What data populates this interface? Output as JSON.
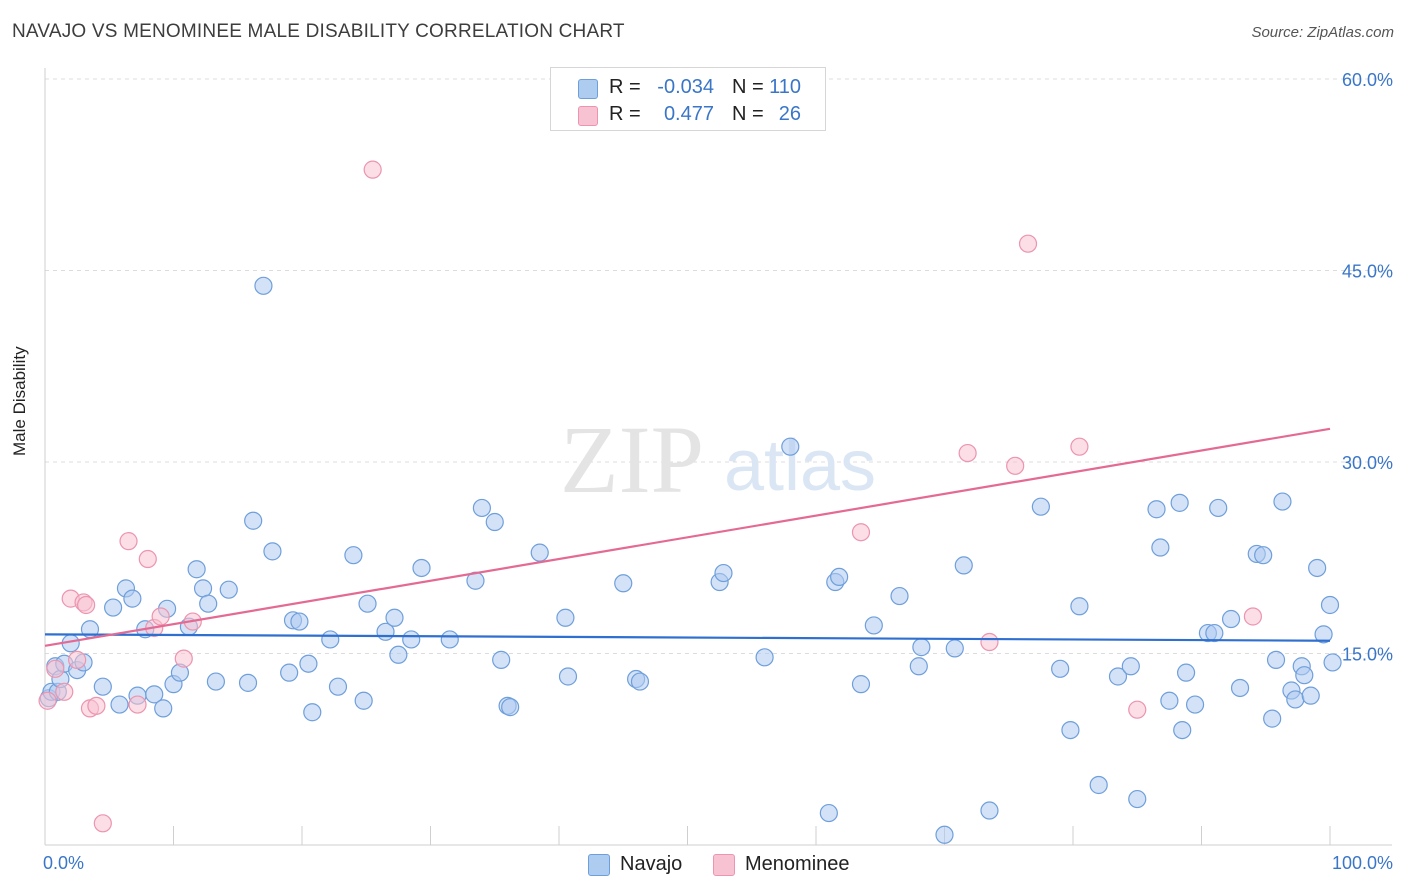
{
  "title": "NAVAJO VS MENOMINEE MALE DISABILITY CORRELATION CHART",
  "source": "Source: ZipAtlas.com",
  "watermark": {
    "zip": "ZIP",
    "atlas": "atlas"
  },
  "legend": {
    "rows": [
      {
        "r_label": "R =",
        "r_value": "-0.034",
        "n_label": "N =",
        "n_value": "110"
      },
      {
        "r_label": "R =",
        "r_value": "0.477",
        "n_label": "N =",
        "n_value": "26"
      }
    ]
  },
  "colors": {
    "navajo_fill": "#aecbf0",
    "navajo_stroke": "#6f9fdb",
    "navajo_line": "#2f6fd0",
    "menominee_fill": "#f7c3d2",
    "menominee_stroke": "#ec94b0",
    "menominee_line": "#e46a93",
    "tick_label": "#3a76c8",
    "grid": "#dcdcdc"
  },
  "chart_data": {
    "type": "scatter",
    "title": "NAVAJO VS MENOMINEE MALE DISABILITY CORRELATION CHART",
    "ylabel": "Male Disability",
    "xlabel": "",
    "xlim": [
      0,
      100
    ],
    "ylim": [
      0,
      60
    ],
    "x_tick_labels": [
      "0.0%",
      "100.0%"
    ],
    "y_ticks": [
      15,
      30,
      45,
      60
    ],
    "y_tick_labels": [
      "15.0%",
      "30.0%",
      "45.0%",
      "60.0%"
    ],
    "grid": "horizontal dashed",
    "legend_position": "top-center",
    "series": [
      {
        "name": "Navajo",
        "r": -0.034,
        "n": 110,
        "trend": {
          "x": [
            0,
            100
          ],
          "y": [
            16.5,
            16.0
          ]
        },
        "points": [
          [
            0.3,
            11.5
          ],
          [
            0.5,
            12
          ],
          [
            0.8,
            14
          ],
          [
            1.0,
            12
          ],
          [
            1.2,
            13
          ],
          [
            1.5,
            14.2
          ],
          [
            2.0,
            15.8
          ],
          [
            2.5,
            13.7
          ],
          [
            3.0,
            14.3
          ],
          [
            3.5,
            16.9
          ],
          [
            4.5,
            12.4
          ],
          [
            5.3,
            18.6
          ],
          [
            5.8,
            11.0
          ],
          [
            6.3,
            20.1
          ],
          [
            6.8,
            19.3
          ],
          [
            7.2,
            11.7
          ],
          [
            7.8,
            16.9
          ],
          [
            8.5,
            11.8
          ],
          [
            9.2,
            10.7
          ],
          [
            9.5,
            18.5
          ],
          [
            10.0,
            12.6
          ],
          [
            10.5,
            13.5
          ],
          [
            11.2,
            17.1
          ],
          [
            11.8,
            21.6
          ],
          [
            12.3,
            20.1
          ],
          [
            12.7,
            18.9
          ],
          [
            13.3,
            12.8
          ],
          [
            14.3,
            20.0
          ],
          [
            15.8,
            12.7
          ],
          [
            16.2,
            25.4
          ],
          [
            17.0,
            43.8
          ],
          [
            17.7,
            23.0
          ],
          [
            19.0,
            13.5
          ],
          [
            19.3,
            17.6
          ],
          [
            19.8,
            17.5
          ],
          [
            20.5,
            14.2
          ],
          [
            20.8,
            10.4
          ],
          [
            22.2,
            16.1
          ],
          [
            22.8,
            12.4
          ],
          [
            24.0,
            22.7
          ],
          [
            24.8,
            11.3
          ],
          [
            25.1,
            18.9
          ],
          [
            26.5,
            16.7
          ],
          [
            27.2,
            17.8
          ],
          [
            27.5,
            14.9
          ],
          [
            28.5,
            16.1
          ],
          [
            29.3,
            21.7
          ],
          [
            31.5,
            16.1
          ],
          [
            33.5,
            20.7
          ],
          [
            34.0,
            26.4
          ],
          [
            35.0,
            25.3
          ],
          [
            35.5,
            14.5
          ],
          [
            36.0,
            10.9
          ],
          [
            36.2,
            10.8
          ],
          [
            38.5,
            22.9
          ],
          [
            40.5,
            17.8
          ],
          [
            40.7,
            13.2
          ],
          [
            45.0,
            20.5
          ],
          [
            46.0,
            13.0
          ],
          [
            46.3,
            12.8
          ],
          [
            52.5,
            20.6
          ],
          [
            52.8,
            21.3
          ],
          [
            56.0,
            14.7
          ],
          [
            58.0,
            31.2
          ],
          [
            61.0,
            2.5
          ],
          [
            61.5,
            20.6
          ],
          [
            61.8,
            21.0
          ],
          [
            63.5,
            12.6
          ],
          [
            64.5,
            17.2
          ],
          [
            66.5,
            19.5
          ],
          [
            68.0,
            14.0
          ],
          [
            68.2,
            15.5
          ],
          [
            70.0,
            0.8
          ],
          [
            70.8,
            15.4
          ],
          [
            71.5,
            21.9
          ],
          [
            73.5,
            2.7
          ],
          [
            77.5,
            26.5
          ],
          [
            79.0,
            13.8
          ],
          [
            79.8,
            9.0
          ],
          [
            80.5,
            18.7
          ],
          [
            82.0,
            4.7
          ],
          [
            83.5,
            13.2
          ],
          [
            84.5,
            14.0
          ],
          [
            85.0,
            3.6
          ],
          [
            86.5,
            26.3
          ],
          [
            86.8,
            23.3
          ],
          [
            87.5,
            11.3
          ],
          [
            88.3,
            26.8
          ],
          [
            88.5,
            9.0
          ],
          [
            88.8,
            13.5
          ],
          [
            89.5,
            11.0
          ],
          [
            90.5,
            16.6
          ],
          [
            91.0,
            16.6
          ],
          [
            91.3,
            26.4
          ],
          [
            92.3,
            17.7
          ],
          [
            93.0,
            12.3
          ],
          [
            94.3,
            22.8
          ],
          [
            94.8,
            22.7
          ],
          [
            95.5,
            9.9
          ],
          [
            95.8,
            14.5
          ],
          [
            96.3,
            26.9
          ],
          [
            97.0,
            12.1
          ],
          [
            97.3,
            11.4
          ],
          [
            97.8,
            14.0
          ],
          [
            98.0,
            13.3
          ],
          [
            98.5,
            11.7
          ],
          [
            99.0,
            21.7
          ],
          [
            99.5,
            16.5
          ],
          [
            100.0,
            18.8
          ],
          [
            100.2,
            14.3
          ]
        ]
      },
      {
        "name": "Menominee",
        "r": 0.477,
        "n": 26,
        "trend": {
          "x": [
            0,
            100
          ],
          "y": [
            15.6,
            32.6
          ]
        },
        "points": [
          [
            0.2,
            11.3
          ],
          [
            0.8,
            13.8
          ],
          [
            1.5,
            12.0
          ],
          [
            2.0,
            19.3
          ],
          [
            2.5,
            14.5
          ],
          [
            3.0,
            19.0
          ],
          [
            3.2,
            18.8
          ],
          [
            3.5,
            10.7
          ],
          [
            4.0,
            10.9
          ],
          [
            4.5,
            1.7
          ],
          [
            6.5,
            23.8
          ],
          [
            7.2,
            11.0
          ],
          [
            8.0,
            22.4
          ],
          [
            8.5,
            17.0
          ],
          [
            9.0,
            17.9
          ],
          [
            10.8,
            14.6
          ],
          [
            11.5,
            17.5
          ],
          [
            25.5,
            52.9
          ],
          [
            63.5,
            24.5
          ],
          [
            71.8,
            30.7
          ],
          [
            73.5,
            15.9
          ],
          [
            75.5,
            29.7
          ],
          [
            76.5,
            47.1
          ],
          [
            80.5,
            31.2
          ],
          [
            85.0,
            10.6
          ],
          [
            94.0,
            17.9
          ]
        ]
      }
    ]
  }
}
